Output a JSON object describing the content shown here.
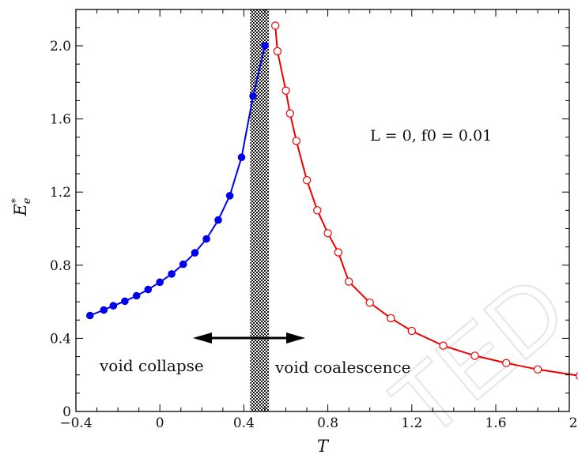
{
  "chart_data": {
    "type": "line",
    "xlabel": "T",
    "ylabel": "E*_e",
    "xlim": [
      -0.4,
      2.05
    ],
    "ylim": [
      0,
      2.2
    ],
    "x_ticks": [
      -0.4,
      0,
      0.4,
      0.8,
      1.2,
      1.6,
      2.0
    ],
    "x_tick_labels": [
      "−0.4",
      "0",
      "0.4",
      "0.8",
      "1.2",
      "1.6",
      "2.0"
    ],
    "y_ticks": [
      0,
      0.4,
      0.8,
      1.2,
      1.6,
      2.0
    ],
    "y_tick_labels": [
      "0",
      "0.4",
      "0.8",
      "1.2",
      "1.6",
      "2.0"
    ],
    "grid": false,
    "annotation": "L = 0,    f0 = 0.01",
    "transition_band": [
      0.43,
      0.52
    ],
    "region_labels": {
      "left": "void collapse",
      "right": "void coalescence"
    },
    "series": [
      {
        "color": "#0000ee",
        "marker": "filled-circle",
        "points": [
          [
            -0.333,
            0.525
          ],
          [
            -0.267,
            0.555
          ],
          [
            -0.222,
            0.578
          ],
          [
            -0.167,
            0.603
          ],
          [
            -0.111,
            0.633
          ],
          [
            -0.056,
            0.667
          ],
          [
            0.0,
            0.707
          ],
          [
            0.056,
            0.752
          ],
          [
            0.111,
            0.805
          ],
          [
            0.167,
            0.868
          ],
          [
            0.222,
            0.944
          ],
          [
            0.278,
            1.047
          ],
          [
            0.333,
            1.18
          ],
          [
            0.389,
            1.39
          ],
          [
            0.444,
            1.725
          ],
          [
            0.5,
            2.0
          ]
        ]
      },
      {
        "color": "#ee0000",
        "marker": "open-circle",
        "points": [
          [
            0.55,
            2.11
          ],
          [
            0.56,
            1.97
          ],
          [
            0.6,
            1.755
          ],
          [
            0.62,
            1.63
          ],
          [
            0.65,
            1.48
          ],
          [
            0.7,
            1.265
          ],
          [
            0.75,
            1.1
          ],
          [
            0.8,
            0.975
          ],
          [
            0.85,
            0.87
          ],
          [
            0.9,
            0.71
          ],
          [
            1.0,
            0.595
          ],
          [
            1.1,
            0.51
          ],
          [
            1.2,
            0.44
          ],
          [
            1.35,
            0.36
          ],
          [
            1.5,
            0.305
          ],
          [
            1.65,
            0.265
          ],
          [
            1.8,
            0.23
          ],
          [
            2.0,
            0.195
          ]
        ]
      }
    ],
    "red_curve_end": [
      2.0,
      0.195
    ]
  }
}
